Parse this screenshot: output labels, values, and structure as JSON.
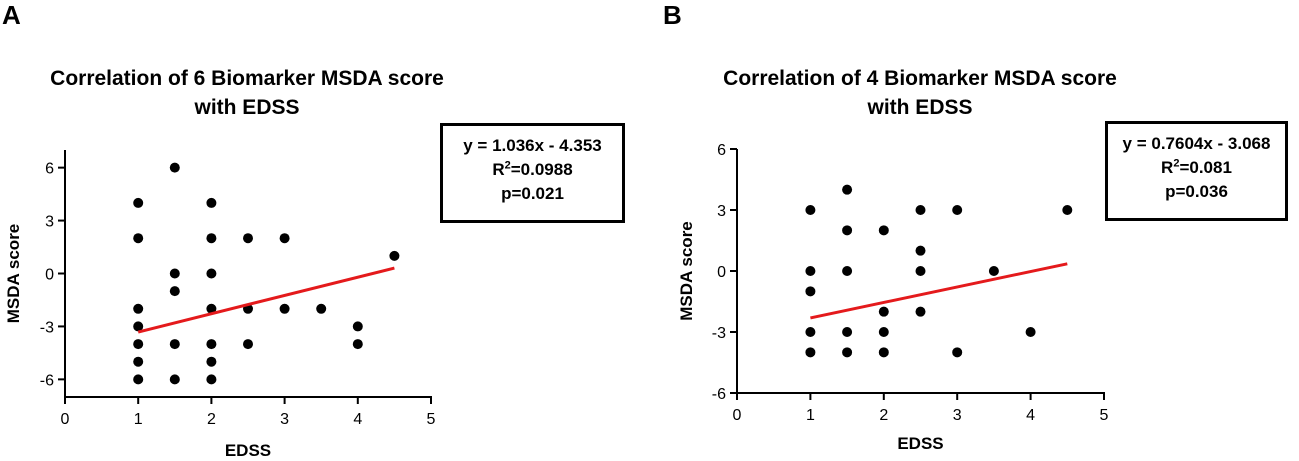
{
  "panels": [
    {
      "letter": "A",
      "title_line1": "Correlation of 6 Biomarker MSDA score",
      "title_line2": "with EDSS",
      "equation": "y = 1.036x - 4.353",
      "r2_prefix": "R",
      "r2_sup": "2",
      "r2_value": "=0.0988",
      "p_value": "p=0.021"
    },
    {
      "letter": "B",
      "title_line1": "Correlation of 4 Biomarker MSDA score",
      "title_line2": "with EDSS",
      "equation": "y = 0.7604x - 3.068",
      "r2_prefix": "R",
      "r2_sup": "2",
      "r2_value": "=0.081",
      "p_value": "p=0.036"
    }
  ],
  "chart_data": [
    {
      "type": "scatter",
      "title": "Correlation of 6 Biomarker MSDA score with EDSS",
      "xlabel": "EDSS",
      "ylabel": "MSDA score",
      "xlim": [
        0,
        5
      ],
      "ylim": [
        -7,
        7
      ],
      "xticks": [
        0,
        1,
        2,
        3,
        4,
        5
      ],
      "yticks": [
        -6,
        -3,
        0,
        3,
        6
      ],
      "points": [
        [
          1,
          4
        ],
        [
          1,
          2
        ],
        [
          1,
          -2
        ],
        [
          1,
          -3
        ],
        [
          1,
          -4
        ],
        [
          1,
          -5
        ],
        [
          1,
          -6
        ],
        [
          1.5,
          6
        ],
        [
          1.5,
          0
        ],
        [
          1.5,
          -1
        ],
        [
          1.5,
          -4
        ],
        [
          1.5,
          -6
        ],
        [
          2,
          4
        ],
        [
          2,
          2
        ],
        [
          2,
          0
        ],
        [
          2,
          -2
        ],
        [
          2,
          -4
        ],
        [
          2,
          -5
        ],
        [
          2,
          -6
        ],
        [
          2.5,
          2
        ],
        [
          2.5,
          -2
        ],
        [
          2.5,
          -4
        ],
        [
          3,
          2
        ],
        [
          3,
          -2
        ],
        [
          3.5,
          -2
        ],
        [
          4,
          -3
        ],
        [
          4,
          -4
        ],
        [
          4.5,
          1
        ]
      ],
      "fit_line": {
        "slope": 1.036,
        "intercept": -4.353,
        "x_range": [
          1,
          4.5
        ],
        "color": "#e41a1c"
      },
      "point_color": "#000000"
    },
    {
      "type": "scatter",
      "title": "Correlation of 4 Biomarker MSDA score with EDSS",
      "xlabel": "EDSS",
      "ylabel": "MSDA score",
      "xlim": [
        0,
        5
      ],
      "ylim": [
        -6,
        6
      ],
      "xticks": [
        0,
        1,
        2,
        3,
        4,
        5
      ],
      "yticks": [
        -6,
        -3,
        0,
        3,
        6
      ],
      "points": [
        [
          1,
          3
        ],
        [
          1,
          0
        ],
        [
          1,
          -1
        ],
        [
          1,
          -3
        ],
        [
          1,
          -4
        ],
        [
          1.5,
          4
        ],
        [
          1.5,
          2
        ],
        [
          1.5,
          0
        ],
        [
          1.5,
          -3
        ],
        [
          1.5,
          -4
        ],
        [
          2,
          2
        ],
        [
          2,
          -2
        ],
        [
          2,
          -3
        ],
        [
          2,
          -4
        ],
        [
          2.5,
          3
        ],
        [
          2.5,
          1
        ],
        [
          2.5,
          0
        ],
        [
          2.5,
          -2
        ],
        [
          3,
          3
        ],
        [
          3,
          -4
        ],
        [
          3.5,
          0
        ],
        [
          4,
          -3
        ],
        [
          4.5,
          3
        ]
      ],
      "fit_line": {
        "slope": 0.7604,
        "intercept": -3.068,
        "x_range": [
          1,
          4.5
        ],
        "color": "#e41a1c"
      },
      "point_color": "#000000"
    }
  ]
}
